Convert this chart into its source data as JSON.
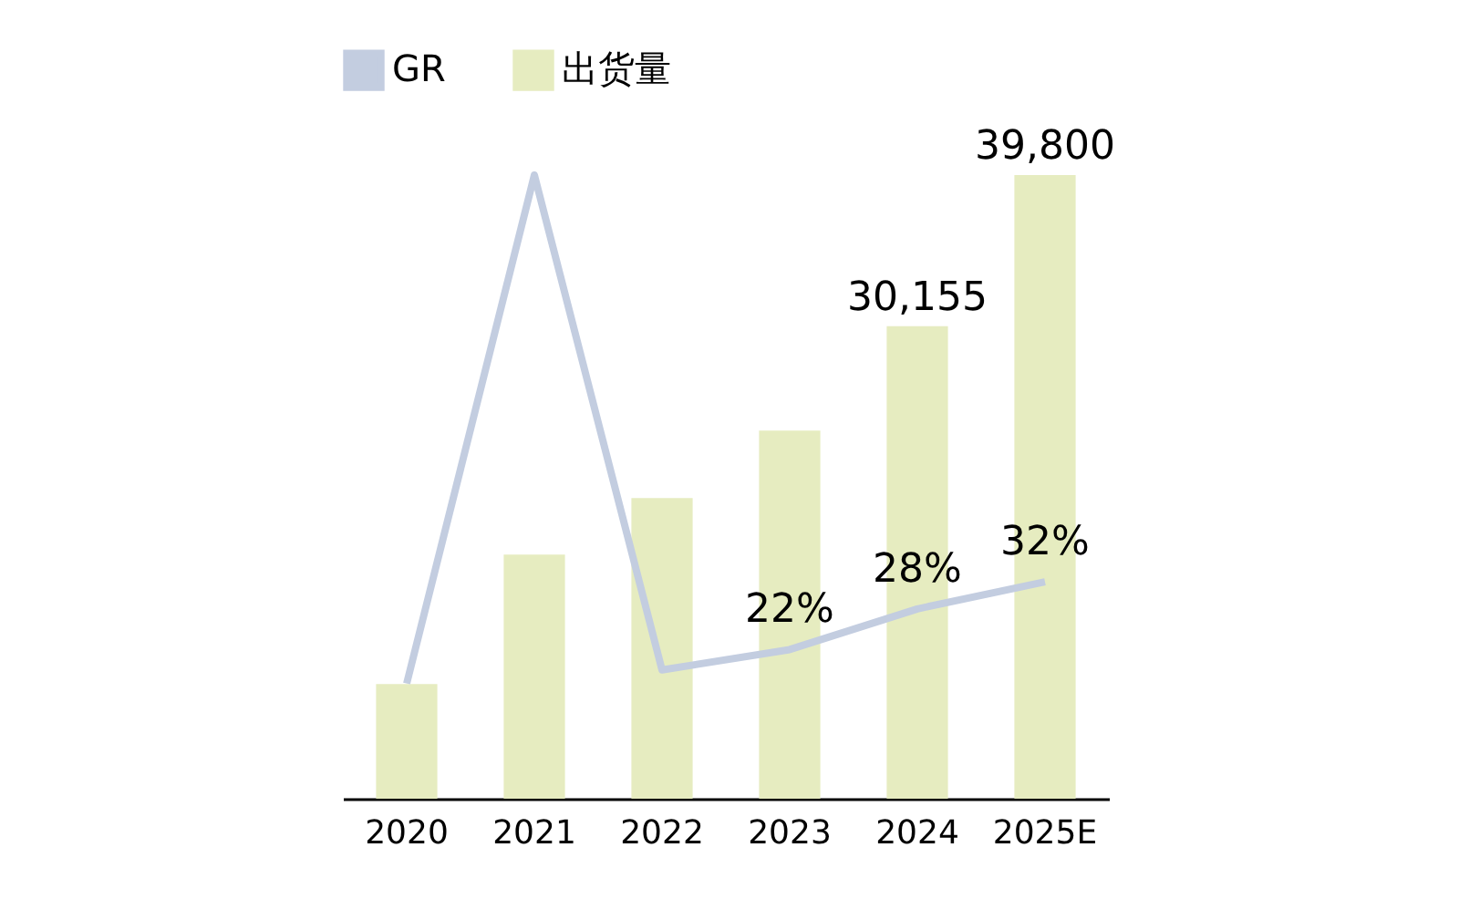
{
  "chart_data": {
    "type": "bar",
    "categories": [
      "2020",
      "2021",
      "2022",
      "2023",
      "2024",
      "2025E"
    ],
    "series": [
      {
        "name": "GR",
        "type": "line",
        "axis": "y2",
        "color": "#c3cde0",
        "values": [
          17,
          92,
          19,
          22,
          28,
          32
        ],
        "value_labels": [
          null,
          null,
          null,
          "22%",
          "28%",
          "32%"
        ]
      },
      {
        "name": "出货量",
        "color": "#e6ecc0",
        "values": [
          7310,
          15580,
          19180,
          23500,
          30155,
          39800
        ],
        "value_labels": [
          null,
          null,
          null,
          null,
          "30,155",
          "39,800"
        ]
      }
    ],
    "legend": "top"
  }
}
